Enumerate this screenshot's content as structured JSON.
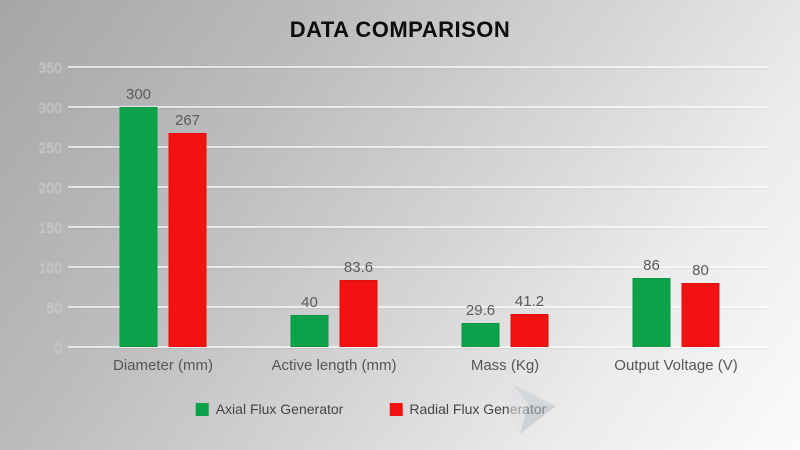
{
  "chart_data": {
    "type": "bar",
    "title": "DATA COMPARISON",
    "categories": [
      "Diameter (mm)",
      "Active length (mm)",
      "Mass (Kg)",
      "Output Voltage (V)"
    ],
    "series": [
      {
        "name": "Axial Flux Generator",
        "color": "#0ba24a",
        "values": [
          300,
          40,
          29.6,
          86
        ]
      },
      {
        "name": "Radial Flux Generator",
        "color": "#f21212",
        "values": [
          267,
          83.6,
          41.2,
          80
        ]
      }
    ],
    "ylim": [
      0,
      350
    ],
    "yticks": [
      0,
      50,
      100,
      150,
      200,
      250,
      300,
      350
    ],
    "grid": true,
    "legend_position": "bottom"
  },
  "watermark_icon": "arrow-logo-watermark"
}
